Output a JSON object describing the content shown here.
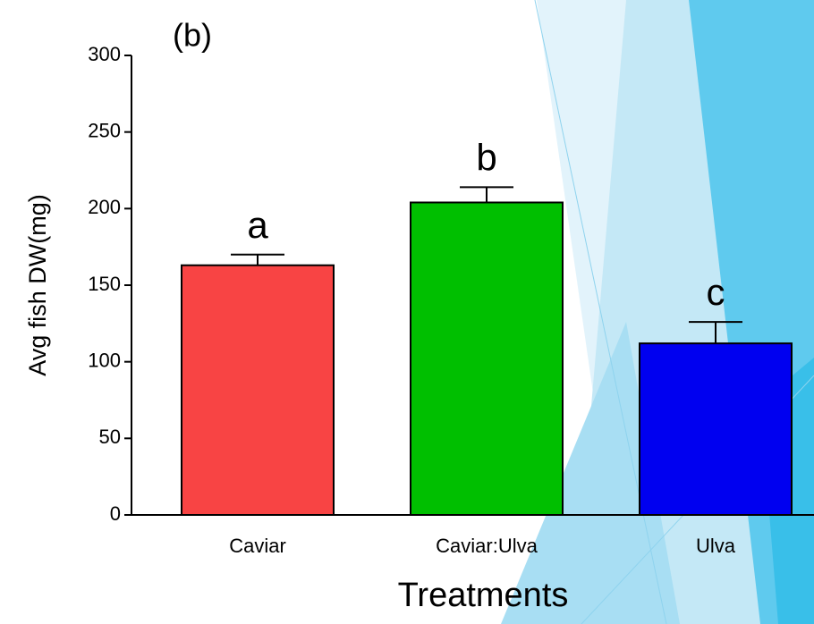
{
  "chart_data": {
    "type": "bar",
    "panel_label": "(b)",
    "y_label": "Avg fish DW(mg)",
    "x_label": "Treatments",
    "categories": [
      "Caviar",
      "Caviar:Ulva",
      "Ulva"
    ],
    "values": [
      163,
      204,
      112
    ],
    "errors": [
      7,
      10,
      14
    ],
    "letters": [
      "a",
      "b",
      "c"
    ],
    "colors": [
      "#f84444",
      "#00bf00",
      "#0000f0"
    ],
    "ylim": [
      0,
      300
    ],
    "yticks": [
      0,
      50,
      100,
      150,
      200,
      250,
      300
    ]
  }
}
